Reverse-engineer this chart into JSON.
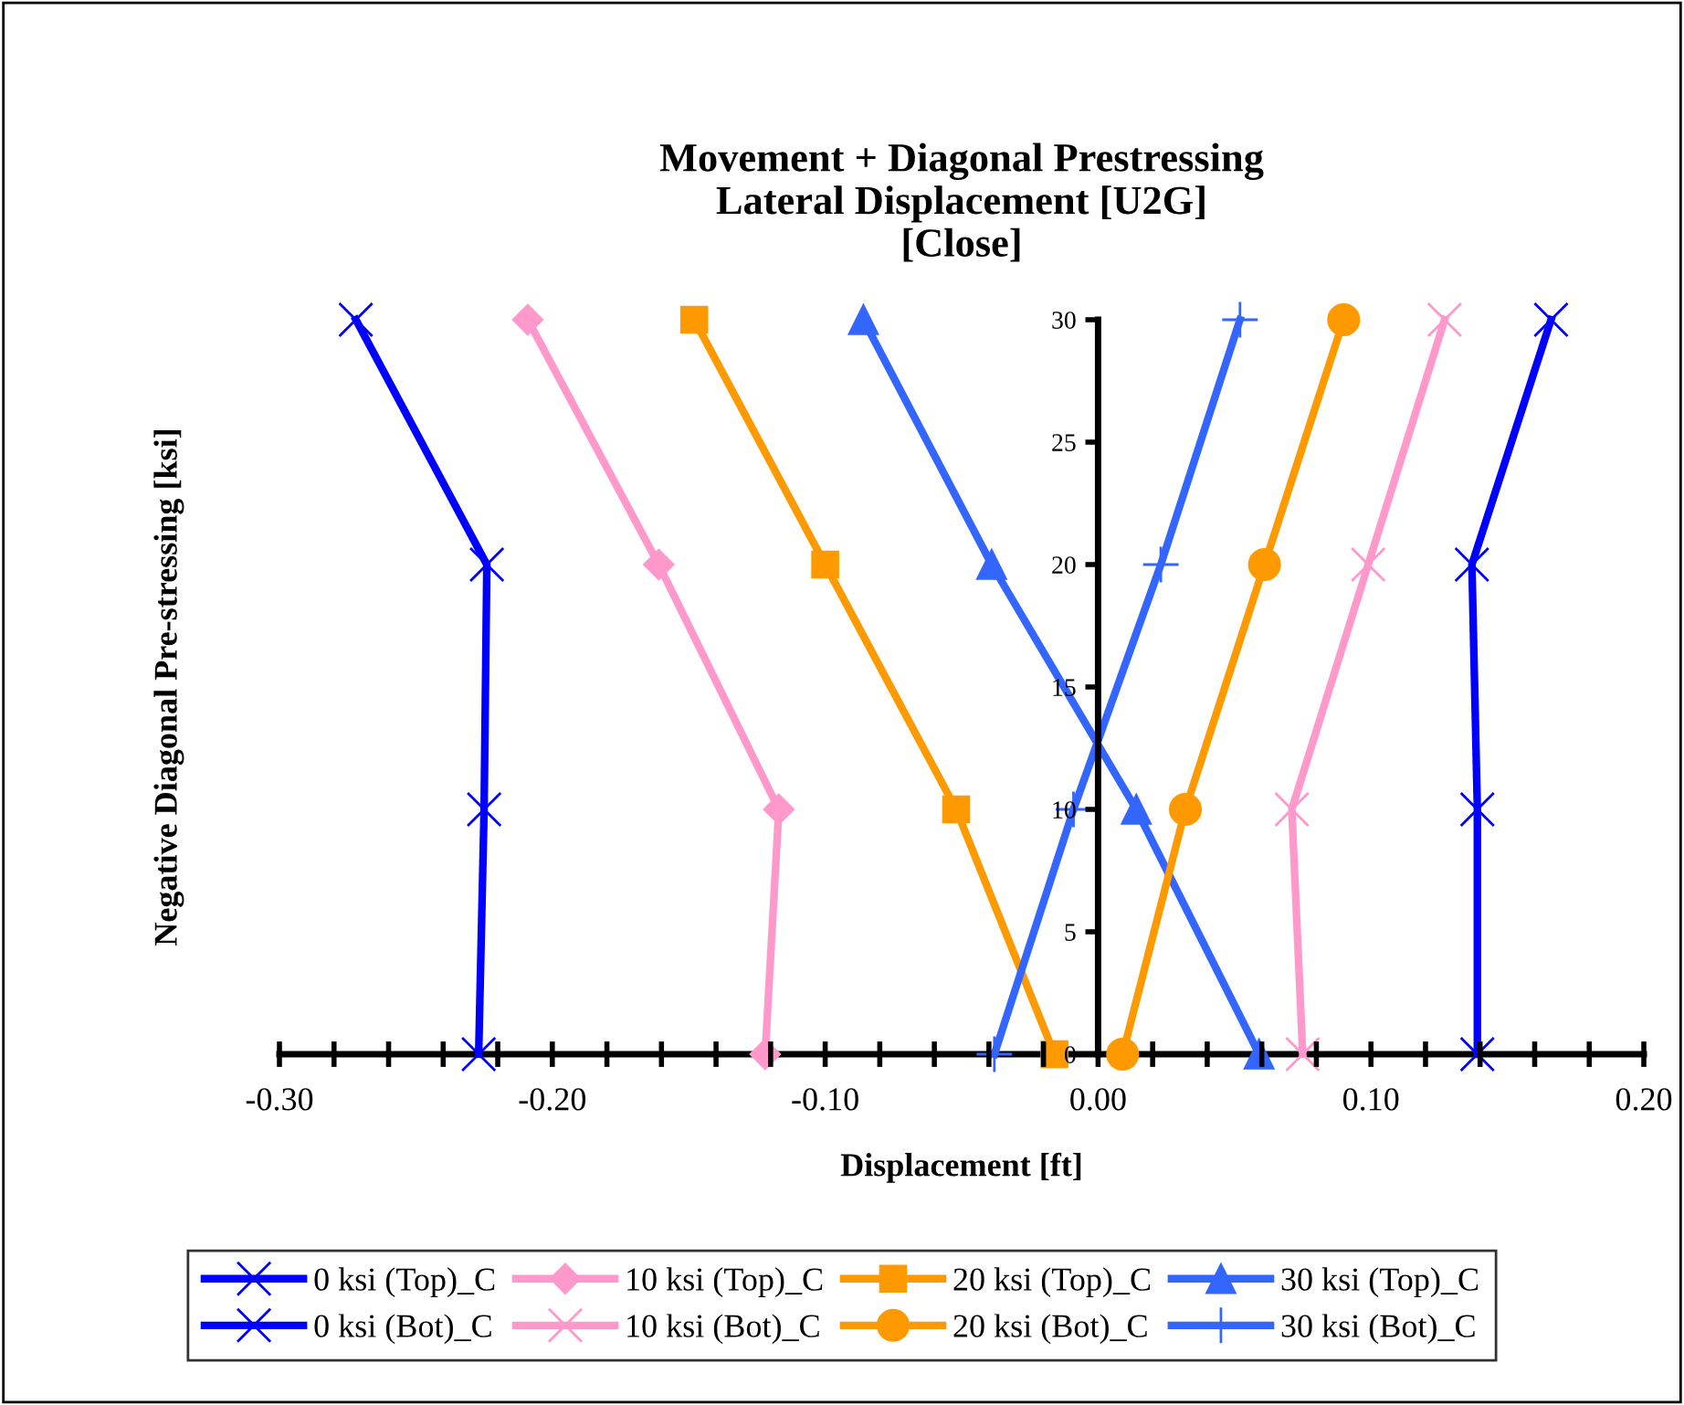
{
  "chart_data": {
    "type": "line",
    "title": "Movement + Diagonal Prestressing\nLateral Displacement [U2G]\n[Close]",
    "xlabel": "Displacement [ft]",
    "ylabel": "Negative Diagonal Pre-stressing [ksi]",
    "xlim": [
      -0.3,
      0.2
    ],
    "xticks": [
      {
        "value": -0.3,
        "label": "-0.30"
      },
      {
        "value": -0.28,
        "label": null
      },
      {
        "value": -0.26,
        "label": null
      },
      {
        "value": -0.24,
        "label": null
      },
      {
        "value": -0.22,
        "label": null
      },
      {
        "value": -0.2,
        "label": "-0.20"
      },
      {
        "value": -0.18,
        "label": null
      },
      {
        "value": -0.16,
        "label": null
      },
      {
        "value": -0.14,
        "label": null
      },
      {
        "value": -0.12,
        "label": null
      },
      {
        "value": -0.1,
        "label": "-0.10"
      },
      {
        "value": -0.08,
        "label": null
      },
      {
        "value": -0.06,
        "label": null
      },
      {
        "value": -0.04,
        "label": null
      },
      {
        "value": -0.02,
        "label": null
      },
      {
        "value": 0,
        "label": "0.00"
      },
      {
        "value": 0.02,
        "label": null
      },
      {
        "value": 0.04,
        "label": null
      },
      {
        "value": 0.06,
        "label": null
      },
      {
        "value": 0.08,
        "label": null
      },
      {
        "value": 0.1,
        "label": "0.10"
      },
      {
        "value": 0.12,
        "label": null
      },
      {
        "value": 0.14,
        "label": null
      },
      {
        "value": 0.16,
        "label": null
      },
      {
        "value": 0.18,
        "label": null
      },
      {
        "value": 0.2,
        "label": "0.20"
      }
    ],
    "ylim": [
      0,
      30
    ],
    "yticks": [
      0,
      5,
      10,
      15,
      20,
      25,
      30
    ],
    "grid": false,
    "legend": "bottom",
    "line_style": "solid",
    "series": [
      {
        "name": "0 ksi (Top)_C",
        "color": "#0000ff",
        "marker": "cross",
        "x": [
          -0.227,
          -0.225,
          -0.224,
          -0.272
        ],
        "values": [
          0,
          10,
          20,
          30
        ]
      },
      {
        "name": "10 ksi (Top)_C",
        "color": "#ff99cc",
        "marker": "diamond",
        "x": [
          -0.122,
          -0.117,
          -0.161,
          -0.209
        ],
        "values": [
          0,
          10,
          20,
          30
        ]
      },
      {
        "name": "20 ksi (Top)_C",
        "color": "#ff9900",
        "marker": "square",
        "x": [
          -0.016,
          -0.052,
          -0.1,
          -0.148
        ],
        "values": [
          0,
          10,
          20,
          30
        ]
      },
      {
        "name": "30 ksi (Top)_C",
        "color": "#3366ff",
        "marker": "triangle",
        "x": [
          0.059,
          0.014,
          -0.039,
          -0.086
        ],
        "values": [
          0,
          10,
          20,
          30
        ]
      },
      {
        "name": "0 ksi (Bot)_C",
        "color": "#0000ff",
        "marker": "cross",
        "x": [
          0.139,
          0.139,
          0.137,
          0.166
        ],
        "values": [
          0,
          10,
          20,
          30
        ]
      },
      {
        "name": "10 ksi (Bot)_C",
        "color": "#ff99cc",
        "marker": "cross",
        "x": [
          0.075,
          0.071,
          0.099,
          0.127
        ],
        "values": [
          0,
          10,
          20,
          30
        ]
      },
      {
        "name": "20 ksi (Bot)_C",
        "color": "#ff9900",
        "marker": "circle",
        "x": [
          0.009,
          0.032,
          0.061,
          0.09
        ],
        "values": [
          0,
          10,
          20,
          30
        ]
      },
      {
        "name": "30 ksi (Bot)_C",
        "color": "#3366ff",
        "marker": "plus",
        "x": [
          -0.038,
          -0.009,
          0.023,
          0.052
        ],
        "values": [
          0,
          10,
          20,
          30
        ]
      }
    ]
  }
}
